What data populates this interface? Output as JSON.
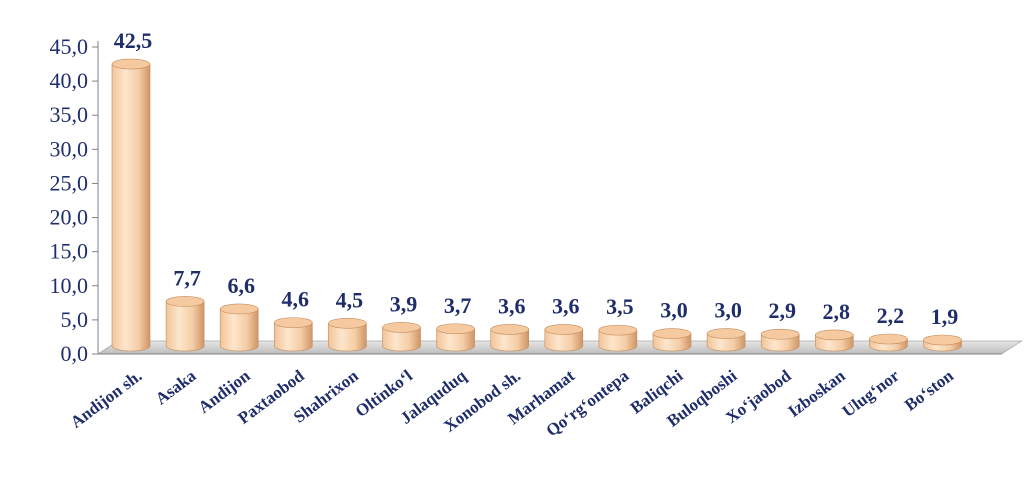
{
  "chart_data": {
    "type": "bar",
    "categories": [
      "Andijon sh.",
      "Asaka",
      "Andijon",
      "Paxtaobod",
      "Shahrixon",
      "Oltinko‘l",
      "Jalaquduq",
      "Xonobod sh.",
      "Marhamat",
      "Qo‘rg‘ontepa",
      "Baliqchi",
      "Buloqboshi",
      "Xo‘jaobod",
      "Izboskan",
      "Ulug‘nor",
      "Bo‘ston"
    ],
    "values": [
      42.5,
      7.7,
      6.6,
      4.6,
      4.5,
      3.9,
      3.7,
      3.6,
      3.6,
      3.5,
      3.0,
      3.0,
      2.9,
      2.8,
      2.2,
      1.9
    ],
    "value_labels": [
      "42,5",
      "7,7",
      "6,6",
      "4,6",
      "4,5",
      "3,9",
      "3,7",
      "3,6",
      "3,6",
      "3,5",
      "3,0",
      "3,0",
      "2,9",
      "2,8",
      "2,2",
      "1,9"
    ],
    "y_ticks": [
      "0,0",
      "5,0",
      "10,0",
      "15,0",
      "20,0",
      "25,0",
      "30,0",
      "35,0",
      "40,0",
      "45,0"
    ],
    "ylim": [
      0,
      45
    ],
    "grid": false,
    "legend": "none",
    "colors": {
      "bar_light": "#fde3c4",
      "bar_dark": "#d9a070",
      "bar_top": "#f6caa0",
      "text": "#1f2d6b",
      "floor": "#d9d9d9",
      "axis": "#808080"
    }
  }
}
